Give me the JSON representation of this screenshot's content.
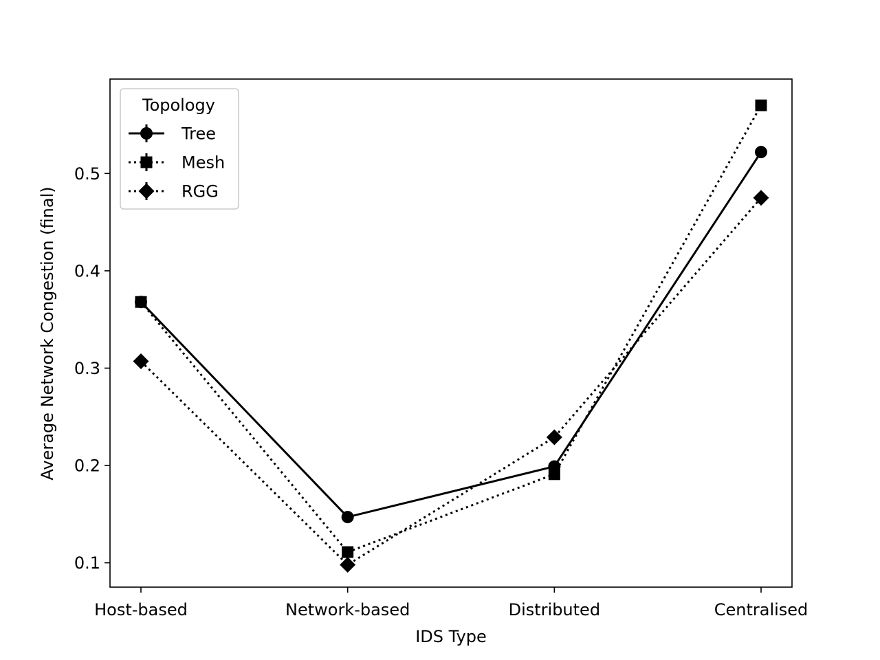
{
  "chart_data": {
    "type": "line",
    "title": "",
    "xlabel": "IDS Type",
    "ylabel": "Average Network Congestion (final)",
    "categories": [
      "Host-based",
      "Network-based",
      "Distributed",
      "Centralised"
    ],
    "ylim": [
      0.075,
      0.597
    ],
    "yticks": [
      0.1,
      0.2,
      0.3,
      0.4,
      0.5
    ],
    "ytick_labels": [
      "0.1",
      "0.2",
      "0.3",
      "0.4",
      "0.5"
    ],
    "grid": false,
    "legend": {
      "title": "Topology",
      "placement": "upper-left"
    },
    "series": [
      {
        "name": "Tree",
        "marker": "circle",
        "linestyle": "solid",
        "color": "#000000",
        "values": [
          0.368,
          0.147,
          0.199,
          0.522
        ]
      },
      {
        "name": "Mesh",
        "marker": "square",
        "linestyle": "dotted",
        "color": "#000000",
        "values": [
          0.368,
          0.111,
          0.191,
          0.57
        ]
      },
      {
        "name": "RGG",
        "marker": "diamond",
        "linestyle": "dotted",
        "color": "#000000",
        "values": [
          0.307,
          0.098,
          0.229,
          0.475
        ]
      }
    ]
  }
}
